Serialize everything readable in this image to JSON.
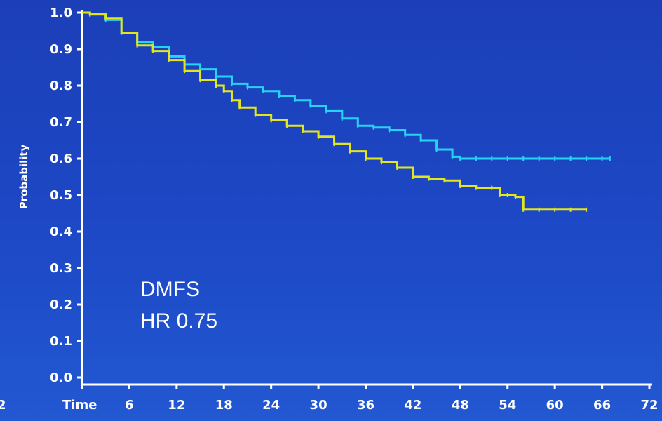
{
  "chart_data": {
    "type": "line",
    "ylabel": "Probability",
    "xlabel": "Time",
    "ylim": [
      0,
      1
    ],
    "xlim": [
      0,
      72
    ],
    "y_ticks": [
      "0.0",
      "0.1",
      "0.2",
      "0.3",
      "0.4",
      "0.5",
      "0.6",
      "0.7",
      "0.8",
      "0.9",
      "1.0"
    ],
    "x_ticks": [
      "6",
      "12",
      "18",
      "24",
      "30",
      "36",
      "42",
      "48",
      "54",
      "60",
      "66",
      "72"
    ],
    "annotation": [
      "DMFS",
      "HR 0.75"
    ],
    "edge_label": "2",
    "grid": false,
    "series": [
      {
        "color": "#25d3f2",
        "x": [
          0,
          1,
          3,
          5,
          7,
          9,
          11,
          13,
          15,
          17,
          19,
          21,
          23,
          25,
          27,
          29,
          31,
          33,
          35,
          37,
          39,
          41,
          43,
          45,
          47,
          48,
          50,
          52,
          54,
          56,
          58,
          60,
          62,
          64,
          66,
          67
        ],
        "y": [
          1.0,
          0.995,
          0.98,
          0.945,
          0.92,
          0.905,
          0.88,
          0.858,
          0.845,
          0.825,
          0.805,
          0.795,
          0.785,
          0.772,
          0.76,
          0.745,
          0.73,
          0.71,
          0.69,
          0.685,
          0.678,
          0.665,
          0.65,
          0.625,
          0.605,
          0.6,
          0.6,
          0.6,
          0.6,
          0.6,
          0.6,
          0.6,
          0.6,
          0.6,
          0.6,
          0.6
        ]
      },
      {
        "color": "#e3e61c",
        "x": [
          0,
          1,
          3,
          5,
          7,
          9,
          11,
          13,
          15,
          17,
          18,
          19,
          20,
          22,
          24,
          26,
          28,
          30,
          32,
          34,
          36,
          38,
          40,
          42,
          44,
          46,
          48,
          50,
          52,
          53,
          54,
          55,
          56,
          58,
          60,
          62,
          64
        ],
        "y": [
          1.0,
          0.995,
          0.985,
          0.945,
          0.91,
          0.895,
          0.87,
          0.84,
          0.815,
          0.8,
          0.785,
          0.76,
          0.74,
          0.72,
          0.705,
          0.69,
          0.675,
          0.66,
          0.64,
          0.62,
          0.6,
          0.59,
          0.575,
          0.55,
          0.545,
          0.54,
          0.525,
          0.52,
          0.52,
          0.5,
          0.5,
          0.495,
          0.46,
          0.46,
          0.46,
          0.46,
          0.46
        ]
      }
    ]
  }
}
